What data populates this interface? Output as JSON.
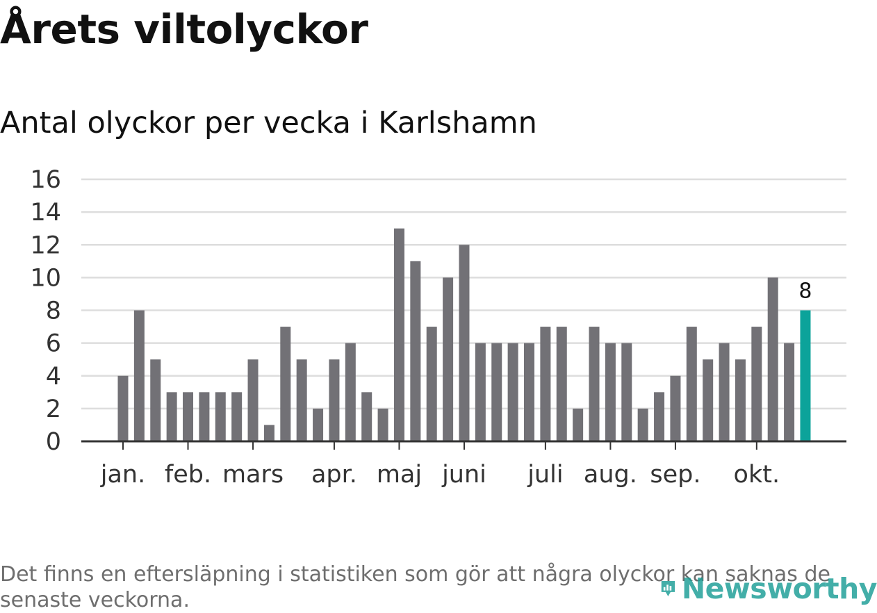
{
  "header": {
    "title": "Årets viltolyckor",
    "subtitle": "Antal olyckor per vecka i Karlshamn"
  },
  "footer": {
    "note": "Det finns en eftersläpning i statistiken som gör att några olyckor kan saknas de senaste veckorna.",
    "brand": "Newsworthy",
    "brand_icon": "bar-chart-pin-icon"
  },
  "colors": {
    "bar": "#727176",
    "highlight": "#0ca39a",
    "grid": "#dddddd",
    "axis": "#333333",
    "text": "#333333"
  },
  "chart_data": {
    "type": "bar",
    "title": "Årets viltolyckor",
    "subtitle": "Antal olyckor per vecka i Karlshamn",
    "xlabel": "",
    "ylabel": "",
    "ylim": [
      0,
      16
    ],
    "yticks": [
      0,
      2,
      4,
      6,
      8,
      10,
      12,
      14,
      16
    ],
    "grid": true,
    "weeks": [
      1,
      2,
      3,
      4,
      5,
      6,
      7,
      8,
      9,
      10,
      11,
      12,
      13,
      14,
      15,
      16,
      17,
      18,
      19,
      20,
      21,
      22,
      23,
      24,
      25,
      26,
      27,
      28,
      29,
      30,
      31,
      32,
      33,
      34,
      35,
      36,
      37,
      38,
      39,
      40,
      41,
      42,
      43
    ],
    "values": [
      4,
      8,
      5,
      3,
      3,
      3,
      3,
      3,
      5,
      1,
      7,
      5,
      2,
      5,
      6,
      3,
      2,
      13,
      11,
      7,
      10,
      12,
      6,
      6,
      6,
      6,
      7,
      7,
      2,
      7,
      6,
      6,
      2,
      3,
      4,
      7,
      5,
      6,
      5,
      7,
      10,
      6,
      8
    ],
    "highlight_index": 42,
    "highlight_label": "8",
    "month_ticks": [
      {
        "label": "jan.",
        "position": 1.0
      },
      {
        "label": "feb.",
        "position": 5.0
      },
      {
        "label": "mars",
        "position": 9.0
      },
      {
        "label": "apr.",
        "position": 14.0
      },
      {
        "label": "maj",
        "position": 18.0
      },
      {
        "label": "juni",
        "position": 22.0
      },
      {
        "label": "juli",
        "position": 27.0
      },
      {
        "label": "aug.",
        "position": 31.0
      },
      {
        "label": "sep.",
        "position": 35.0
      },
      {
        "label": "okt.",
        "position": 40.0
      }
    ]
  }
}
